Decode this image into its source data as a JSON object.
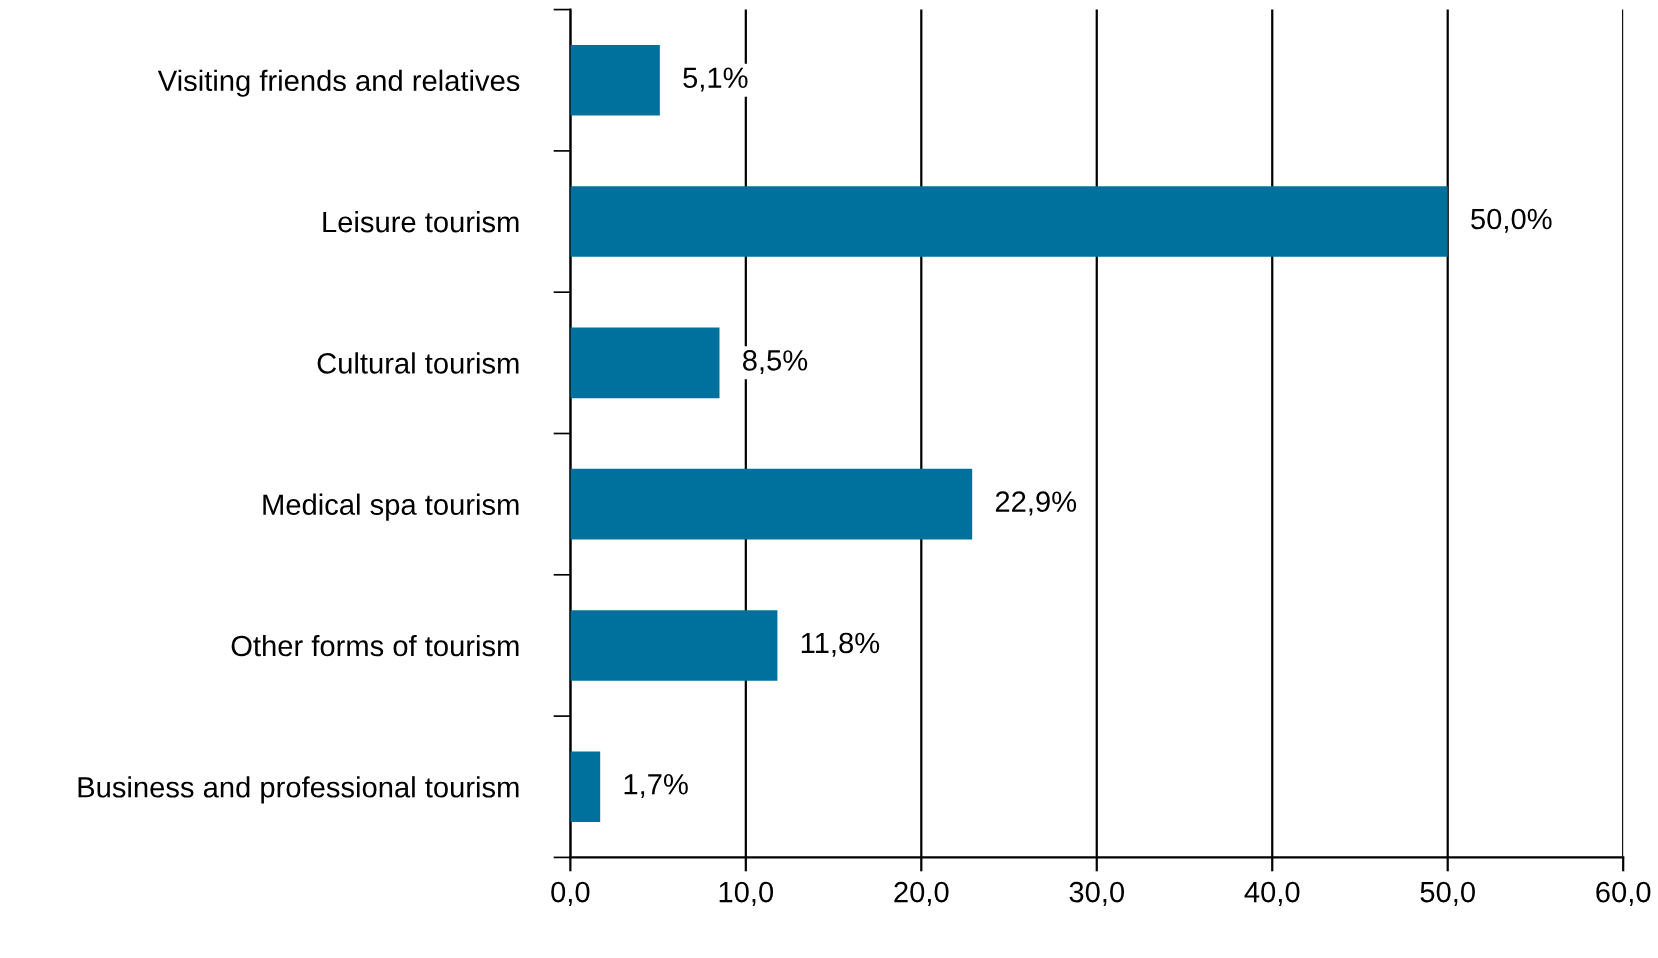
{
  "chart_data": {
    "type": "bar",
    "orientation": "horizontal",
    "categories": [
      "Visiting friends and relatives",
      "Leisure tourism",
      "Cultural tourism",
      "Medical spa tourism",
      "Other forms of tourism",
      "Business and professional tourism"
    ],
    "values": [
      5.1,
      50.0,
      8.5,
      22.9,
      11.8,
      1.7
    ],
    "value_labels": [
      "5,1%",
      "50,0%",
      "8,5%",
      "22,9%",
      "11,8%",
      "1,7%"
    ],
    "color": "#00719c",
    "xlim": [
      0,
      60
    ],
    "xticks": [
      {
        "value": 0,
        "label": "0,0"
      },
      {
        "value": 10,
        "label": "10,0"
      },
      {
        "value": 20,
        "label": "20,0"
      },
      {
        "value": 30,
        "label": "30,0"
      },
      {
        "value": 40,
        "label": "40,0"
      },
      {
        "value": 50,
        "label": "50,0"
      },
      {
        "value": 60,
        "label": "60,0"
      }
    ],
    "grid": "x"
  }
}
